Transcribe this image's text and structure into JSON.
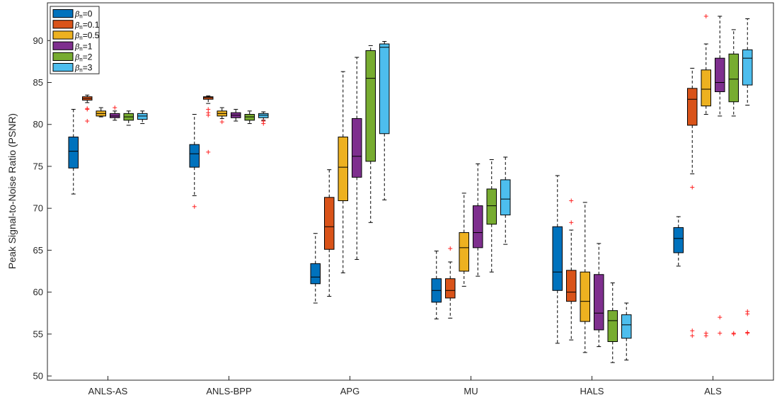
{
  "chart_data": {
    "type": "box",
    "title": "",
    "xlabel": "",
    "ylabel": "Peak Signal-to-Noise Ratio (PSNR)",
    "ylim": [
      49.5,
      94.5
    ],
    "yticks": [
      50,
      55,
      60,
      65,
      70,
      75,
      80,
      85,
      90
    ],
    "grid": false,
    "legend_position": "top-left",
    "categories": [
      "ANLS-AS",
      "ANLS-BPP",
      "APG",
      "MU",
      "HALS",
      "ALS"
    ],
    "series": [
      {
        "name": "β_n=0",
        "legend_sym": "β",
        "legend_sub": "n",
        "legend_rest": "=0",
        "color": "#0072BD",
        "boxes": [
          {
            "wlo": 71.7,
            "q1": 74.8,
            "med": 76.8,
            "q3": 78.5,
            "whi": 81.8,
            "outliers": []
          },
          {
            "wlo": 71.5,
            "q1": 74.9,
            "med": 76.5,
            "q3": 77.6,
            "whi": 81.2,
            "outliers": [
              70.2
            ]
          },
          {
            "wlo": 58.7,
            "q1": 61.0,
            "med": 61.8,
            "q3": 63.4,
            "whi": 67.0,
            "outliers": []
          },
          {
            "wlo": 56.8,
            "q1": 58.8,
            "med": 60.2,
            "q3": 61.6,
            "whi": 64.9,
            "outliers": []
          },
          {
            "wlo": 53.9,
            "q1": 60.2,
            "med": 62.4,
            "q3": 67.8,
            "whi": 73.9,
            "outliers": []
          },
          {
            "wlo": 63.1,
            "q1": 64.7,
            "med": 66.4,
            "q3": 67.7,
            "whi": 69.0,
            "outliers": []
          }
        ]
      },
      {
        "name": "β_n=0.1",
        "legend_sym": "β",
        "legend_sub": "n",
        "legend_rest": "=0.1",
        "color": "#D95319",
        "boxes": [
          {
            "wlo": 82.6,
            "q1": 82.9,
            "med": 83.1,
            "q3": 83.3,
            "whi": 83.5,
            "outliers": [
              81.8,
              81.9,
              80.4
            ]
          },
          {
            "wlo": 82.5,
            "q1": 83.0,
            "med": 83.2,
            "q3": 83.3,
            "whi": 83.4,
            "outliers": [
              81.8,
              81.4,
              81.1,
              76.7
            ]
          },
          {
            "wlo": 59.5,
            "q1": 65.1,
            "med": 67.8,
            "q3": 71.3,
            "whi": 74.6,
            "outliers": []
          },
          {
            "wlo": 56.9,
            "q1": 59.3,
            "med": 60.2,
            "q3": 61.6,
            "whi": 63.6,
            "outliers": [
              65.2
            ]
          },
          {
            "wlo": 54.3,
            "q1": 58.9,
            "med": 60.0,
            "q3": 62.6,
            "whi": 67.4,
            "outliers": [
              70.9,
              68.3
            ]
          },
          {
            "wlo": 74.1,
            "q1": 79.9,
            "med": 83.0,
            "q3": 84.3,
            "whi": 86.7,
            "outliers": [
              72.5,
              55.4,
              54.8
            ]
          }
        ]
      },
      {
        "name": "β_n=0.5",
        "legend_sym": "β",
        "legend_sub": "n",
        "legend_rest": "=0.5",
        "color": "#EDB120",
        "boxes": [
          {
            "wlo": 80.9,
            "q1": 81.0,
            "med": 81.3,
            "q3": 81.6,
            "whi": 82.0,
            "outliers": []
          },
          {
            "wlo": 80.7,
            "q1": 81.0,
            "med": 81.3,
            "q3": 81.6,
            "whi": 82.0,
            "outliers": [
              80.3
            ]
          },
          {
            "wlo": 62.3,
            "q1": 70.9,
            "med": 74.9,
            "q3": 78.5,
            "whi": 86.3,
            "outliers": []
          },
          {
            "wlo": 60.7,
            "q1": 62.5,
            "med": 65.3,
            "q3": 67.1,
            "whi": 71.8,
            "outliers": []
          },
          {
            "wlo": 52.8,
            "q1": 56.5,
            "med": 58.9,
            "q3": 62.4,
            "whi": 70.7,
            "outliers": []
          },
          {
            "wlo": 81.2,
            "q1": 82.2,
            "med": 84.2,
            "q3": 86.5,
            "whi": 89.6,
            "outliers": [
              92.9,
              55.1,
              54.8
            ]
          }
        ]
      },
      {
        "name": "β_n=1",
        "legend_sym": "β",
        "legend_sub": "n",
        "legend_rest": "=1",
        "color": "#7E2F8E",
        "boxes": [
          {
            "wlo": 80.5,
            "q1": 80.8,
            "med": 81.0,
            "q3": 81.3,
            "whi": 81.6,
            "outliers": [
              82.0
            ]
          },
          {
            "wlo": 80.4,
            "q1": 80.8,
            "med": 81.1,
            "q3": 81.4,
            "whi": 81.8,
            "outliers": []
          },
          {
            "wlo": 63.9,
            "q1": 73.7,
            "med": 76.2,
            "q3": 80.7,
            "whi": 88.0,
            "outliers": []
          },
          {
            "wlo": 61.9,
            "q1": 65.3,
            "med": 67.1,
            "q3": 70.3,
            "whi": 75.3,
            "outliers": []
          },
          {
            "wlo": 53.5,
            "q1": 55.5,
            "med": 57.5,
            "q3": 62.1,
            "whi": 65.8,
            "outliers": []
          },
          {
            "wlo": 81.0,
            "q1": 83.9,
            "med": 85.0,
            "q3": 87.9,
            "whi": 92.9,
            "outliers": [
              57.0,
              55.1
            ]
          }
        ]
      },
      {
        "name": "β_n=2",
        "legend_sym": "β",
        "legend_sub": "n",
        "legend_rest": "=2",
        "color": "#77AC30",
        "boxes": [
          {
            "wlo": 79.9,
            "q1": 80.5,
            "med": 80.9,
            "q3": 81.3,
            "whi": 81.6,
            "outliers": []
          },
          {
            "wlo": 80.1,
            "q1": 80.5,
            "med": 80.9,
            "q3": 81.2,
            "whi": 81.6,
            "outliers": []
          },
          {
            "wlo": 68.3,
            "q1": 75.6,
            "med": 85.5,
            "q3": 88.8,
            "whi": 89.4,
            "outliers": []
          },
          {
            "wlo": 62.4,
            "q1": 68.1,
            "med": 70.3,
            "q3": 72.3,
            "whi": 75.8,
            "outliers": []
          },
          {
            "wlo": 51.6,
            "q1": 54.1,
            "med": 56.6,
            "q3": 57.8,
            "whi": 61.1,
            "outliers": []
          },
          {
            "wlo": 81.0,
            "q1": 82.7,
            "med": 85.4,
            "q3": 88.4,
            "whi": 91.3,
            "outliers": [
              55.1,
              55.0
            ]
          }
        ]
      },
      {
        "name": "β_n=3",
        "legend_sym": "β",
        "legend_sub": "n",
        "legend_rest": "=3",
        "color": "#4DBEEE",
        "boxes": [
          {
            "wlo": 80.1,
            "q1": 80.6,
            "med": 81.0,
            "q3": 81.3,
            "whi": 81.6,
            "outliers": []
          },
          {
            "wlo": 80.5,
            "q1": 80.8,
            "med": 81.1,
            "q3": 81.3,
            "whi": 81.5,
            "outliers": [
              80.4,
              80.1
            ]
          },
          {
            "wlo": 71.0,
            "q1": 78.9,
            "med": 89.2,
            "q3": 89.6,
            "whi": 89.9,
            "outliers": []
          },
          {
            "wlo": 65.7,
            "q1": 69.2,
            "med": 71.1,
            "q3": 73.4,
            "whi": 76.1,
            "outliers": []
          },
          {
            "wlo": 51.9,
            "q1": 54.5,
            "med": 56.1,
            "q3": 57.3,
            "whi": 58.7,
            "outliers": []
          },
          {
            "wlo": 82.3,
            "q1": 84.7,
            "med": 87.9,
            "q3": 88.9,
            "whi": 92.6,
            "outliers": [
              57.7,
              57.4,
              55.2,
              55.1
            ]
          }
        ]
      }
    ]
  }
}
